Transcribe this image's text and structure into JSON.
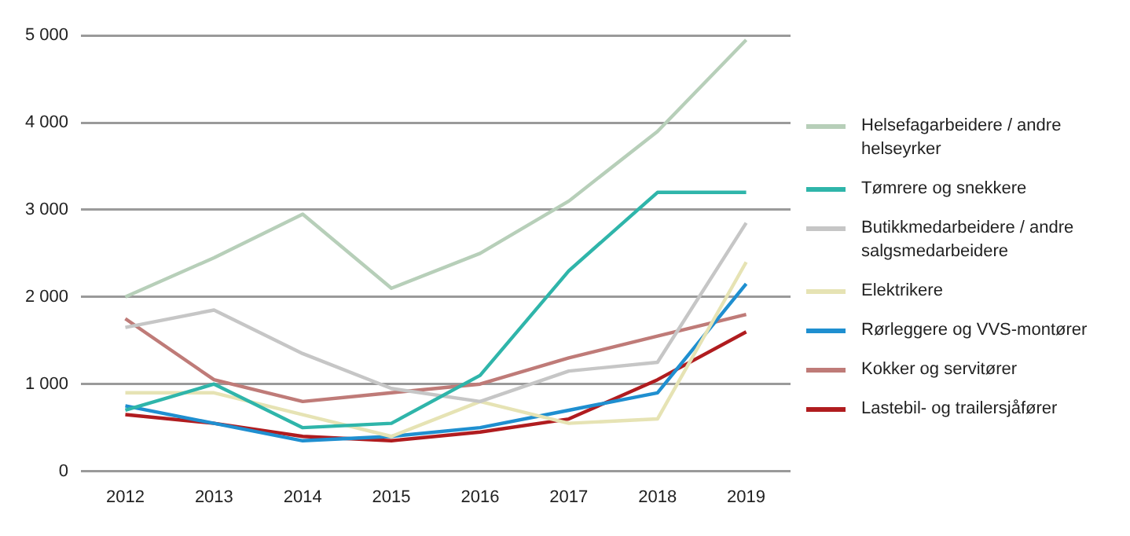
{
  "chart_data": {
    "type": "line",
    "categories": [
      "2012",
      "2013",
      "2014",
      "2015",
      "2016",
      "2017",
      "2018",
      "2019"
    ],
    "series": [
      {
        "name": "Helsefagarbeidere / andre helseyrker",
        "color": "#b7cfb9",
        "values": [
          2000,
          2450,
          2950,
          2100,
          2500,
          3100,
          3900,
          4950
        ]
      },
      {
        "name": "Tømrere og snekkere",
        "color": "#2fb5aa",
        "values": [
          700,
          1000,
          500,
          550,
          1100,
          2300,
          3200,
          3200
        ]
      },
      {
        "name": "Butikkmedarbeidere / andre salgsmedarbeidere",
        "color": "#c6c6c6",
        "values": [
          1650,
          1850,
          1350,
          950,
          800,
          1150,
          1250,
          2850
        ]
      },
      {
        "name": "Elektrikere",
        "color": "#e6e3b4",
        "values": [
          900,
          900,
          650,
          400,
          800,
          550,
          600,
          2400
        ]
      },
      {
        "name": "Rørleggere og VVS-montører",
        "color": "#1f8fd0",
        "values": [
          750,
          550,
          350,
          400,
          500,
          700,
          900,
          2150
        ]
      },
      {
        "name": "Kokker og servitører",
        "color": "#bf7b78",
        "values": [
          1750,
          1050,
          800,
          900,
          1000,
          1300,
          1550,
          1800
        ]
      },
      {
        "name": "Lastebil- og trailersjåfører",
        "color": "#b01c1f",
        "values": [
          650,
          550,
          400,
          350,
          450,
          600,
          1050,
          1600
        ]
      }
    ],
    "ylim": [
      0,
      5000
    ],
    "yticks": [
      {
        "value": 0,
        "label": "0"
      },
      {
        "value": 1000,
        "label": "1 000"
      },
      {
        "value": 2000,
        "label": "2 000"
      },
      {
        "value": 3000,
        "label": "3 000"
      },
      {
        "value": 4000,
        "label": "4 000"
      },
      {
        "value": 5000,
        "label": "5 000"
      }
    ],
    "grid": "y",
    "legend": "right",
    "marker": "none",
    "line_style": "solid"
  }
}
